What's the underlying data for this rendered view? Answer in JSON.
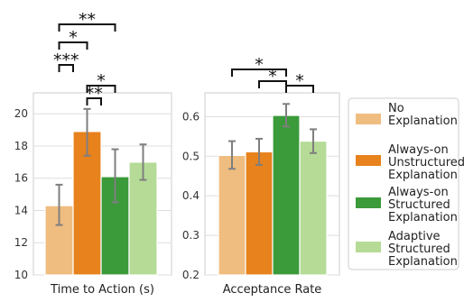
{
  "colors": {
    "no_explanation": "#f0bd80",
    "always_on_unstructured": "#e7821c",
    "always_on_structured": "#3b9a3a",
    "adaptive_structured": "#b5db96",
    "error_bar": "#7f7f7f",
    "grid": "#dddddd",
    "frame": "#cccccc"
  },
  "legend": {
    "placement": "right",
    "entries": [
      {
        "line1": "No",
        "line2": "Explanation",
        "line3": ""
      },
      {
        "line1": "Always-on",
        "line2": "Unstructured",
        "line3": "Explanation"
      },
      {
        "line1": "Always-on",
        "line2": "Structured",
        "line3": "Explanation"
      },
      {
        "line1": "Adaptive",
        "line2": "Structured",
        "line3": "Explanation"
      }
    ]
  },
  "chart_data": [
    {
      "type": "bar",
      "xlabel": "Time to Action (s)",
      "ylim": [
        10,
        21.3
      ],
      "yticks": [
        "10",
        "12",
        "14",
        "16",
        "18",
        "20"
      ],
      "grid": true,
      "series": [
        {
          "name": "No Explanation",
          "value": 14.3,
          "err_low": 13.1,
          "err_high": 15.6
        },
        {
          "name": "Always-on Unstructured Explanation",
          "value": 18.9,
          "err_low": 17.4,
          "err_high": 20.3
        },
        {
          "name": "Always-on Structured Explanation",
          "value": 16.1,
          "err_low": 14.5,
          "err_high": 17.8
        },
        {
          "name": "Adaptive Structured Explanation",
          "value": 17.0,
          "err_low": 15.9,
          "err_high": 18.1
        }
      ],
      "significance": [
        {
          "from": 0,
          "to": 2,
          "label": "**"
        },
        {
          "from": 0,
          "to": 1,
          "label": "*"
        },
        {
          "from": 0,
          "to": 0.5,
          "label": "***"
        },
        {
          "from": 1,
          "to": 2,
          "label": "*"
        },
        {
          "from": 1,
          "to": 1.5,
          "label": "**"
        }
      ]
    },
    {
      "type": "bar",
      "xlabel": "Acceptance Rate",
      "ylim": [
        0.2,
        0.66
      ],
      "yticks": [
        "0.2",
        "0.3",
        "0.4",
        "0.5",
        "0.6"
      ],
      "grid": true,
      "series": [
        {
          "name": "No Explanation",
          "value": 0.502,
          "err_low": 0.468,
          "err_high": 0.538
        },
        {
          "name": "Always-on Unstructured Explanation",
          "value": 0.511,
          "err_low": 0.478,
          "err_high": 0.544
        },
        {
          "name": "Always-on Structured Explanation",
          "value": 0.603,
          "err_low": 0.575,
          "err_high": 0.632
        },
        {
          "name": "Adaptive Structured Explanation",
          "value": 0.538,
          "err_low": 0.508,
          "err_high": 0.568
        }
      ],
      "significance": [
        {
          "from": 0,
          "to": 2,
          "label": "*"
        },
        {
          "from": 1,
          "to": 2,
          "label": "*"
        },
        {
          "from": 2,
          "to": 3,
          "label": "*"
        }
      ]
    }
  ]
}
